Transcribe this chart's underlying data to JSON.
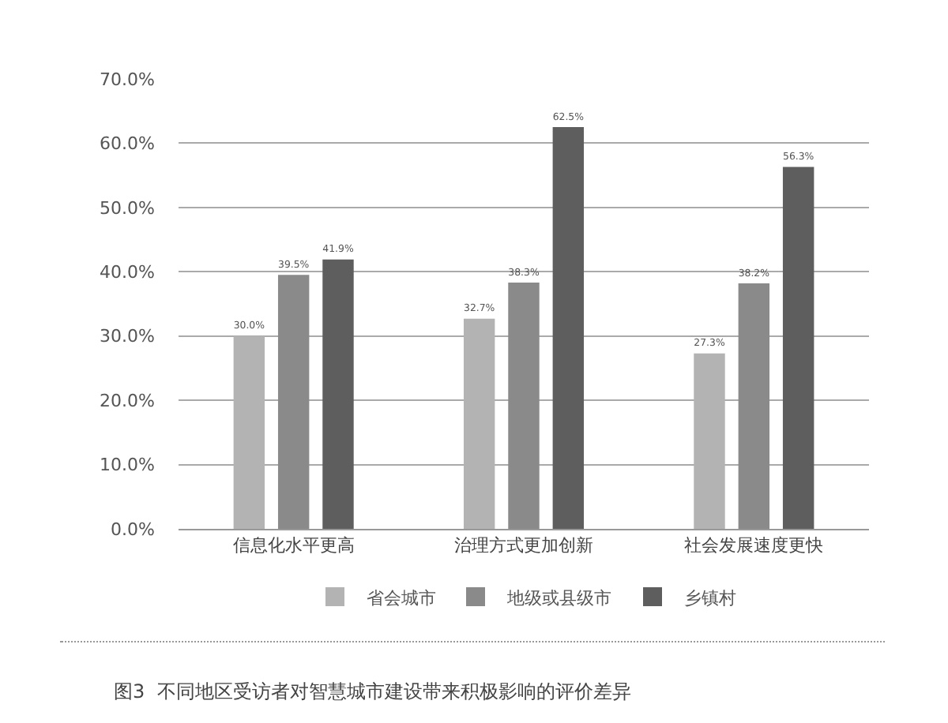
{
  "chart_data": {
    "type": "bar",
    "title": "图3  不同地区受访者对智慧城市建设带来积极影响的评价差异",
    "categories": [
      "信息化水平更高",
      "治理方式更加创新",
      "社会发展速度更快"
    ],
    "series": [
      {
        "name": "省会城市",
        "color": "#b3b3b3",
        "values": [
          30.0,
          32.7,
          27.3
        ],
        "value_labels": [
          "30.0%",
          "32.7%",
          "27.3%"
        ]
      },
      {
        "name": "地级或县级市",
        "color": "#8a8a8a",
        "values": [
          39.5,
          38.3,
          38.2
        ],
        "value_labels": [
          "39.5%",
          "38.3%",
          "38.2%"
        ]
      },
      {
        "name": "乡镇村",
        "color": "#5e5e5e",
        "values": [
          41.9,
          62.5,
          56.3
        ],
        "value_labels": [
          "41.9%",
          "62.5%",
          "56.3%"
        ]
      }
    ],
    "ylim": [
      0,
      70
    ],
    "yticks": [
      {
        "value": 0,
        "label": "0.0%"
      },
      {
        "value": 10,
        "label": "10.0%"
      },
      {
        "value": 20,
        "label": "20.0%"
      },
      {
        "value": 30,
        "label": "30.0%"
      },
      {
        "value": 40,
        "label": "40.0%"
      },
      {
        "value": 50,
        "label": "50.0%"
      },
      {
        "value": 60,
        "label": "60.0%"
      },
      {
        "value": 70,
        "label": "70.0%"
      }
    ],
    "grid": "y",
    "legend": "bottom"
  }
}
